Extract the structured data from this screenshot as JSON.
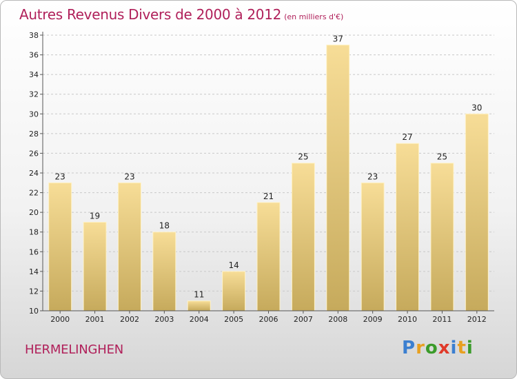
{
  "header": {
    "title": "Autres Revenus Divers de 2000 à 2012",
    "subtitle": "(en milliers d'€)"
  },
  "footer": {
    "commune": "HERMELINGHEN",
    "logo_letters": [
      "P",
      "r",
      "o",
      "x",
      "i",
      "t",
      "i"
    ],
    "logo_colors": [
      "#3b7fd0",
      "#e8a020",
      "#3b9b2a",
      "#e03a2a",
      "#3b7fd0",
      "#e8a020",
      "#3b9b2a"
    ]
  },
  "chart_data": {
    "type": "bar",
    "title": "Autres Revenus Divers de 2000 à 2012",
    "xlabel": "",
    "ylabel": "",
    "categories": [
      "2000",
      "2001",
      "2002",
      "2003",
      "2004",
      "2005",
      "2006",
      "2007",
      "2008",
      "2009",
      "2010",
      "2011",
      "2012"
    ],
    "values": [
      23,
      19,
      23,
      18,
      11,
      14,
      21,
      25,
      37,
      23,
      27,
      25,
      30
    ],
    "ylim": [
      10,
      38
    ],
    "yticks": [
      10,
      12,
      14,
      16,
      18,
      20,
      22,
      24,
      26,
      28,
      30,
      32,
      34,
      36,
      38
    ],
    "grid": "dashed-horizontal",
    "bar_color_top": "#f7dd97",
    "bar_color_bottom": "#c6aa5c",
    "legend": "none"
  }
}
